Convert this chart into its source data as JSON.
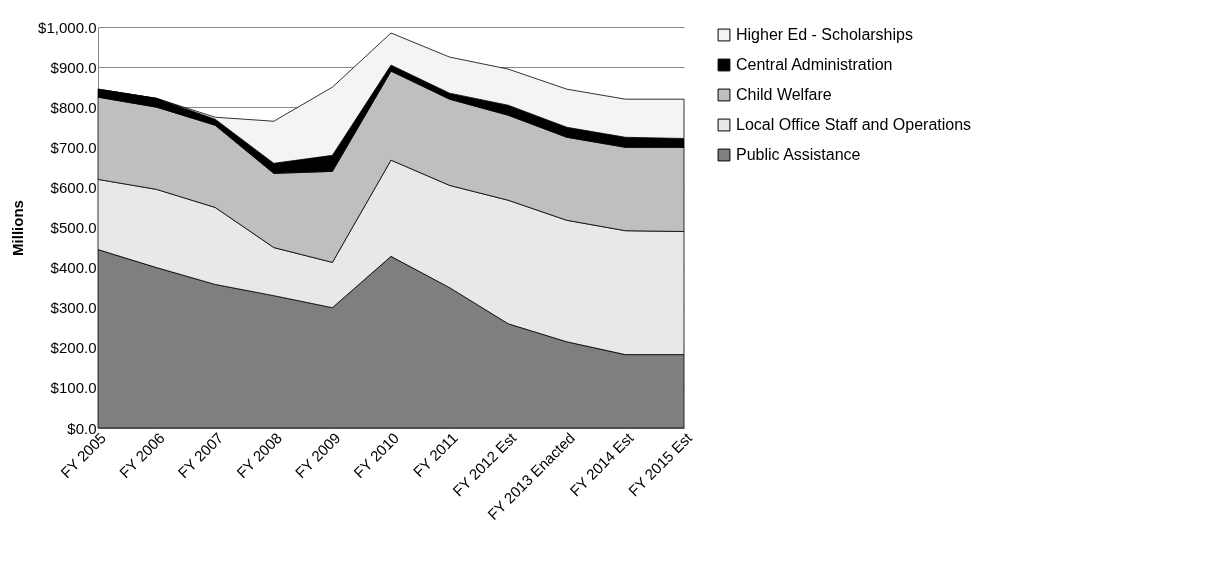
{
  "chart_data": {
    "type": "area",
    "stacked": true,
    "ylabel": "Millions",
    "categories": [
      "FY 2005",
      "FY 2006",
      "FY 2007",
      "FY 2008",
      "FY 2009",
      "FY 2010",
      "FY 2011",
      "FY 2012 Est",
      "FY 2013 Enacted",
      "FY 2014 Est",
      "FY 2015 Est"
    ],
    "series": [
      {
        "name": "Public Assistance",
        "color": "#7f7f7f",
        "values": [
          445,
          400,
          358,
          330,
          300,
          428,
          350,
          260,
          215,
          183,
          183
        ]
      },
      {
        "name": "Local Office Staff and Operations",
        "color": "#e8e8e8",
        "values": [
          175,
          195,
          192,
          120,
          113,
          240,
          255,
          308,
          303,
          309,
          307
        ]
      },
      {
        "name": "Child Welfare",
        "color": "#bfbfbf",
        "values": [
          205,
          205,
          205,
          185,
          227,
          222,
          215,
          212,
          207,
          208,
          210
        ]
      },
      {
        "name": "Central Administration",
        "color": "#000000",
        "values": [
          20,
          22,
          15,
          25,
          40,
          15,
          15,
          25,
          25,
          25,
          22
        ]
      },
      {
        "name": "Higher Ed - Scholarships",
        "color": "#f4f4f4",
        "values": [
          0,
          0,
          5,
          105,
          170,
          80,
          90,
          90,
          95,
          95,
          98
        ]
      }
    ],
    "ylim": [
      0,
      1000
    ],
    "yticks": [
      {
        "value": 0,
        "label": "$0.0"
      },
      {
        "value": 100,
        "label": "$100.0"
      },
      {
        "value": 200,
        "label": "$200.0"
      },
      {
        "value": 300,
        "label": "$300.0"
      },
      {
        "value": 400,
        "label": "$400.0"
      },
      {
        "value": 500,
        "label": "$500.0"
      },
      {
        "value": 600,
        "label": "$600.0"
      },
      {
        "value": 700,
        "label": "$700.0"
      },
      {
        "value": 800,
        "label": "$800.0"
      },
      {
        "value": 900,
        "label": "$900.0"
      },
      {
        "value": 1000,
        "label": "$1,000.0"
      }
    ],
    "grid": "y",
    "legend": "right"
  }
}
